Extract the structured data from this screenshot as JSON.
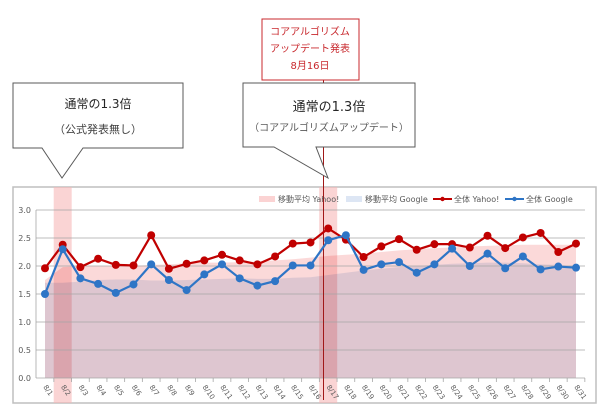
{
  "annotations": {
    "event_box": {
      "lines": [
        "コアアルゴリズム",
        "アップデート発表",
        "8月16日"
      ],
      "color": "#c8282d"
    },
    "callout_left": {
      "title": "通常の1.3倍",
      "subtitle": "（公式発表無し）"
    },
    "callout_right": {
      "title": "通常の1.3倍",
      "subtitle": "（コアアルゴリズムアップデート）"
    }
  },
  "chart_data": {
    "type": "line",
    "title": "",
    "xlabel": "",
    "ylabel": "",
    "ylim": [
      0,
      3.0
    ],
    "yticks": [
      "0.0",
      "0.5",
      "1.0",
      "1.5",
      "2.0",
      "2.5",
      "3.0"
    ],
    "grid": true,
    "legend_position": "top-right",
    "categories": [
      "8/1",
      "8/2",
      "8/3",
      "8/4",
      "8/5",
      "8/6",
      "8/7",
      "8/8",
      "8/9",
      "8/10",
      "8/11",
      "8/12",
      "8/13",
      "8/14",
      "8/15",
      "8/16",
      "8/17",
      "8/18",
      "8/19",
      "8/20",
      "8/21",
      "8/22",
      "8/23",
      "8/24",
      "8/25",
      "8/26",
      "8/27",
      "8/28",
      "8/29",
      "8/30",
      "8/31"
    ],
    "highlighted_categories": [
      "8/2",
      "8/17"
    ],
    "event_marker_category": "8/16",
    "series": [
      {
        "name": "移動平均 Yahoo!",
        "kind": "area",
        "color": "#fbd3d3",
        "values": [
          1.75,
          1.98,
          2.0,
          2.0,
          2.0,
          2.0,
          2.02,
          2.03,
          2.05,
          2.06,
          2.06,
          2.07,
          2.08,
          2.1,
          2.12,
          2.15,
          2.18,
          2.2,
          2.22,
          2.25,
          2.28,
          2.3,
          2.32,
          2.33,
          2.35,
          2.36,
          2.37,
          2.38,
          2.38,
          2.38,
          2.38
        ]
      },
      {
        "name": "移動平均 Google",
        "kind": "area",
        "color": "#dde6f4",
        "values": [
          1.7,
          1.7,
          1.72,
          1.75,
          1.76,
          1.76,
          1.74,
          1.74,
          1.75,
          1.76,
          1.77,
          1.78,
          1.77,
          1.77,
          1.79,
          1.8,
          1.84,
          1.88,
          1.92,
          1.95,
          1.98,
          2.0,
          2.02,
          2.04,
          2.05,
          2.06,
          2.06,
          2.05,
          2.03,
          2.02,
          2.0
        ]
      },
      {
        "name": "全体 Yahoo!",
        "kind": "line",
        "color": "#c00000",
        "values": [
          1.96,
          2.38,
          1.98,
          2.13,
          2.02,
          2.01,
          2.55,
          1.95,
          2.04,
          2.1,
          2.2,
          2.1,
          2.03,
          2.17,
          2.4,
          2.42,
          2.67,
          2.47,
          2.16,
          2.35,
          2.48,
          2.29,
          2.39,
          2.39,
          2.33,
          2.54,
          2.32,
          2.51,
          2.59,
          2.25,
          2.4
        ]
      },
      {
        "name": "全体 Google",
        "kind": "line",
        "color": "#2e75c6",
        "values": [
          1.5,
          2.3,
          1.78,
          1.68,
          1.52,
          1.67,
          2.03,
          1.75,
          1.57,
          1.85,
          2.03,
          1.78,
          1.65,
          1.73,
          2.01,
          2.01,
          2.46,
          2.55,
          1.93,
          2.03,
          2.07,
          1.88,
          2.03,
          2.31,
          2.0,
          2.22,
          1.96,
          2.17,
          1.94,
          1.99,
          1.97
        ]
      }
    ]
  }
}
